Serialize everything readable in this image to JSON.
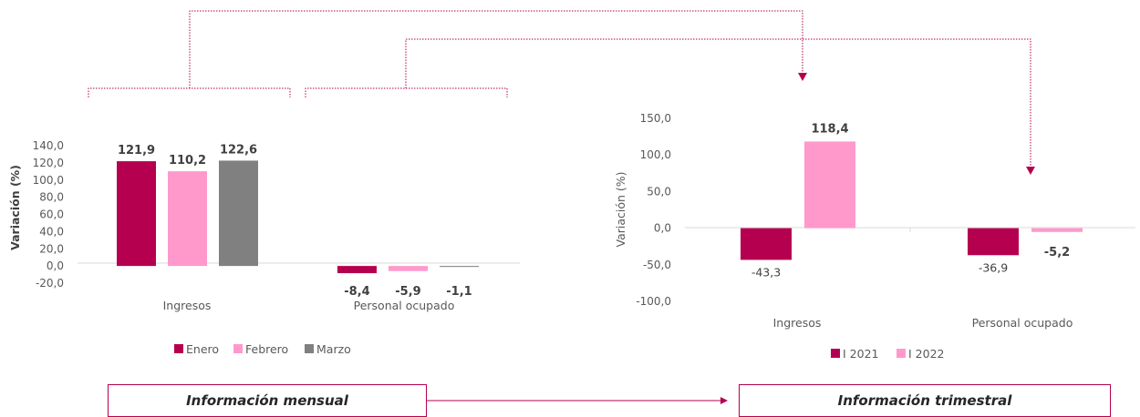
{
  "colors": {
    "accent": "#b5004f",
    "pink": "#ff99cc",
    "gray": "#808080"
  },
  "boxes": {
    "monthly": "Información mensual",
    "quarterly": "Información trimestral"
  },
  "chart_data": [
    {
      "type": "bar",
      "categories": [
        "Ingresos",
        "Personal ocupado"
      ],
      "series": [
        {
          "name": "Enero",
          "values": [
            121.9,
            -8.4
          ],
          "color": "#b5004f"
        },
        {
          "name": "Febrero",
          "values": [
            110.2,
            -5.9
          ],
          "color": "#ff99cc"
        },
        {
          "name": "Marzo",
          "values": [
            122.6,
            -1.1
          ],
          "color": "#808080"
        }
      ],
      "ylabel": "Variación (%)",
      "ylim": [
        -20,
        140
      ],
      "yticks": [
        "140,0",
        "120,0",
        "100,0",
        "80,0",
        "60,0",
        "40,0",
        "20,0",
        "0,0",
        "-20,0"
      ],
      "data_labels": [
        [
          "121,9",
          "110,2",
          "122,6"
        ],
        [
          "-8,4",
          "-5,9",
          "-1,1"
        ]
      ],
      "legend": "bottom"
    },
    {
      "type": "bar",
      "categories": [
        "Ingresos",
        "Personal ocupado"
      ],
      "series": [
        {
          "name": "I 2021",
          "values": [
            -43.3,
            -36.9
          ],
          "color": "#b5004f"
        },
        {
          "name": "I 2022",
          "values": [
            118.4,
            -5.2
          ],
          "color": "#ff99cc"
        }
      ],
      "ylabel": "Variación (%)",
      "ylim": [
        -100,
        150
      ],
      "yticks": [
        "150,0",
        "100,0",
        "50,0",
        "0,0",
        "-50,0",
        "-100,0"
      ],
      "data_labels": [
        [
          "-43,3",
          "118,4"
        ],
        [
          "-36,9",
          "-5,2"
        ]
      ],
      "legend": "bottom"
    }
  ]
}
